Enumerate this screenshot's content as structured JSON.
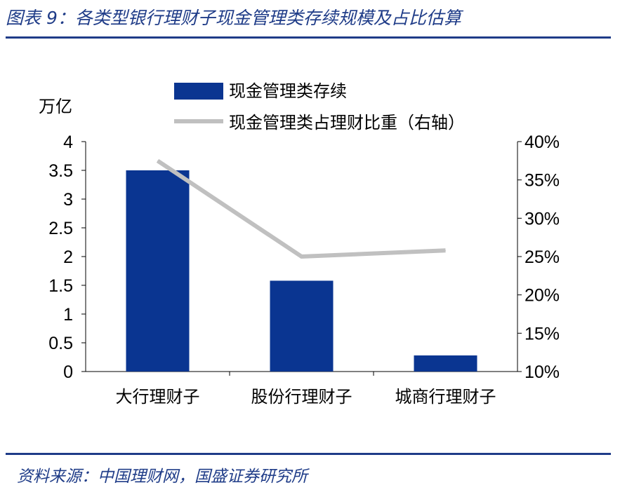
{
  "figure": {
    "title": "图表 9：各类型银行理财子现金管理类存续规模及占比估算",
    "source": "资料来源：中国理财网，国盛证券研究所"
  },
  "chart_data": {
    "type": "bar",
    "title": "",
    "unit_label": "万亿",
    "categories": [
      "大行理财子",
      "股份行理财子",
      "城商行理财子"
    ],
    "series": [
      {
        "name": "现金管理类存续",
        "type": "bar",
        "axis": "left",
        "values": [
          3.5,
          1.58,
          0.28
        ],
        "color": "#0a3591"
      },
      {
        "name": "现金管理类占理财比重（右轴）",
        "type": "line",
        "axis": "right",
        "values": [
          37.5,
          25.0,
          25.8
        ],
        "color": "#c0c0c0"
      }
    ],
    "y_left": {
      "min": 0,
      "max": 4,
      "ticks": [
        "0",
        "0.5",
        "1",
        "1.5",
        "2",
        "2.5",
        "3",
        "3.5",
        "4"
      ]
    },
    "y_right": {
      "min": 10,
      "max": 40,
      "ticks": [
        "10%",
        "15%",
        "20%",
        "25%",
        "30%",
        "35%",
        "40%"
      ]
    },
    "grid": false,
    "legend_position": "top"
  }
}
